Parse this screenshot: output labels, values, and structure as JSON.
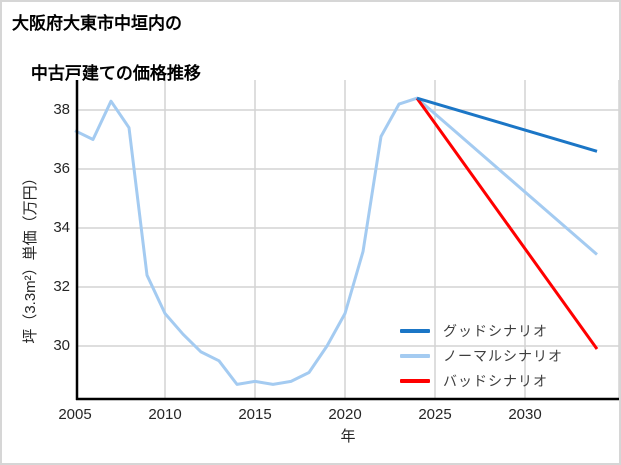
{
  "title": {
    "line1": "大阪府大東市中垣内の",
    "line2": "中古戸建ての価格推移"
  },
  "axes": {
    "ylabel": "坪（3.3m²）単価（万円）",
    "xlabel": "年",
    "ytick_labels": [
      "38",
      "36",
      "34",
      "32",
      "30"
    ],
    "xtick_labels": [
      "2005",
      "2010",
      "2015",
      "2020",
      "2025",
      "2030"
    ]
  },
  "legend": {
    "items": [
      {
        "label": "グッドシナリオ",
        "color": "#1b76c6"
      },
      {
        "label": "ノーマルシナリオ",
        "color": "#a4cbf1"
      },
      {
        "label": "バッドシナリオ",
        "color": "#ff0000"
      }
    ]
  },
  "colors": {
    "good": "#1b76c6",
    "normal": "#a4cbf1",
    "bad": "#ff0000",
    "grid": "#d4d4d4",
    "spine": "#000000"
  },
  "chart_data": {
    "type": "line",
    "title": "大阪府大東市中垣内の中古戸建ての価格推移",
    "xlabel": "年",
    "ylabel": "坪（3.3m²）単価（万円）",
    "xlim": [
      2004.9,
      2035.3
    ],
    "ylim": [
      28.2,
      38.6
    ],
    "xticks": [
      2005,
      2010,
      2015,
      2020,
      2025,
      2030
    ],
    "yticks": [
      30,
      32,
      34,
      36,
      38
    ],
    "grid": true,
    "legend_position": "lower-right",
    "series": [
      {
        "name": "グッドシナリオ",
        "color": "#1b76c6",
        "x": [
          2024,
          2034
        ],
        "y": [
          38.4,
          36.6
        ]
      },
      {
        "name": "ノーマルシナリオ",
        "color": "#a4cbf1",
        "x": [
          2005,
          2006,
          2007,
          2008,
          2009,
          2010,
          2011,
          2012,
          2013,
          2014,
          2015,
          2016,
          2017,
          2018,
          2019,
          2020,
          2021,
          2022,
          2023,
          2024,
          2034
        ],
        "y": [
          37.3,
          37.0,
          38.3,
          37.4,
          32.4,
          31.1,
          30.4,
          29.8,
          29.5,
          28.7,
          28.8,
          28.7,
          28.8,
          29.1,
          30.0,
          31.1,
          33.2,
          37.1,
          38.2,
          38.4,
          33.1
        ]
      },
      {
        "name": "バッドシナリオ",
        "color": "#ff0000",
        "x": [
          2024,
          2034
        ],
        "y": [
          38.4,
          29.9
        ]
      }
    ]
  }
}
